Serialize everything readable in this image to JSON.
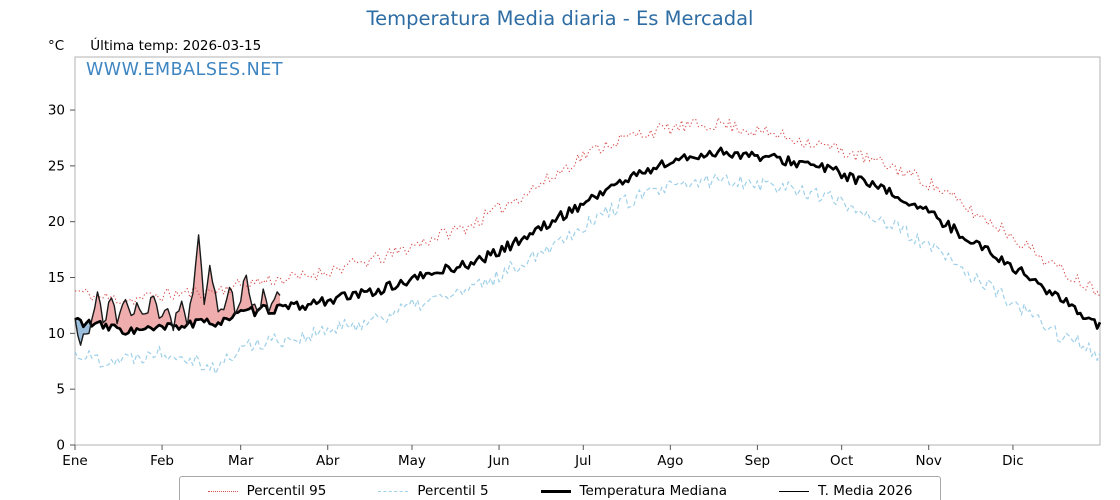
{
  "header": {
    "last_temp": "Última temp: 2026-03-15"
  },
  "watermark": "WWW.EMBALSES.NET",
  "chart_data": {
    "type": "line",
    "title": "Temperatura Media diaria - Es Mercadal",
    "ylabel": "°C",
    "xlabel": "",
    "ylim": [
      0,
      34.75
    ],
    "yticks": [
      0,
      5,
      10,
      15,
      20,
      25,
      30
    ],
    "xlim_days": [
      1,
      366
    ],
    "x_tick_days": [
      1,
      32,
      60,
      91,
      121,
      152,
      182,
      213,
      244,
      274,
      305,
      335
    ],
    "x_tick_labels": [
      "Ene",
      "Feb",
      "Mar",
      "Abr",
      "May",
      "Jun",
      "Jul",
      "Ago",
      "Sep",
      "Oct",
      "Nov",
      "Dic"
    ],
    "grid": false,
    "legend_position": "bottom",
    "colors": {
      "title": "#2e6da4",
      "watermark": "#3e86c2",
      "percentil95": "#d94f4f",
      "percentil5": "#9fd0e8",
      "mediana": "#000000",
      "media2026": "#1a1a1a",
      "fill_above": "rgba(226,106,106,0.55)",
      "fill_below": "rgba(100,155,200,0.65)",
      "axis_box": "#b3b3b3"
    },
    "series": [
      {
        "name": "Percentil 95",
        "style": "dotted",
        "color": "#d94f4f",
        "width": 1.1,
        "noise": 0.6,
        "x": [
          1,
          11,
          21,
          31,
          41,
          51,
          61,
          71,
          81,
          91,
          101,
          111,
          121,
          131,
          141,
          151,
          161,
          171,
          181,
          191,
          201,
          211,
          221,
          231,
          241,
          251,
          261,
          271,
          281,
          291,
          301,
          311,
          321,
          331,
          341,
          351,
          361,
          366
        ],
        "y": [
          13.8,
          13.2,
          13.0,
          13.4,
          13.6,
          13.8,
          14.4,
          14.8,
          15.0,
          15.6,
          16.2,
          16.8,
          17.8,
          18.8,
          19.6,
          21.0,
          22.5,
          24.0,
          25.8,
          27.0,
          27.8,
          28.3,
          28.6,
          28.8,
          28.2,
          27.8,
          27.2,
          26.6,
          25.8,
          25.0,
          24.0,
          22.6,
          20.8,
          19.4,
          17.6,
          15.8,
          14.4,
          13.8
        ]
      },
      {
        "name": "Percentil 5",
        "style": "dashed",
        "color": "#9fd0e8",
        "width": 1.2,
        "noise": 0.7,
        "x": [
          1,
          11,
          21,
          31,
          41,
          51,
          61,
          71,
          81,
          91,
          101,
          111,
          121,
          131,
          141,
          151,
          161,
          171,
          181,
          191,
          201,
          211,
          221,
          231,
          241,
          251,
          261,
          271,
          281,
          291,
          301,
          311,
          321,
          331,
          341,
          351,
          361,
          366
        ],
        "y": [
          8.2,
          7.6,
          7.8,
          8.4,
          8.0,
          6.8,
          8.8,
          9.4,
          9.6,
          10.2,
          10.8,
          11.6,
          12.4,
          13.2,
          13.8,
          15.0,
          16.5,
          18.0,
          19.5,
          21.0,
          22.2,
          22.9,
          23.4,
          23.8,
          23.6,
          23.2,
          22.8,
          22.0,
          21.0,
          19.8,
          18.4,
          16.8,
          15.0,
          13.4,
          11.6,
          10.0,
          8.8,
          8.0
        ]
      },
      {
        "name": "Temperatura Mediana",
        "style": "solid",
        "color": "#000000",
        "width": 2.7,
        "noise": 0.45,
        "x": [
          1,
          11,
          21,
          31,
          41,
          51,
          61,
          71,
          81,
          91,
          101,
          111,
          121,
          131,
          141,
          151,
          161,
          171,
          181,
          191,
          201,
          211,
          221,
          231,
          241,
          251,
          261,
          271,
          281,
          291,
          301,
          311,
          321,
          331,
          341,
          351,
          361,
          366
        ],
        "y": [
          11.2,
          10.6,
          10.2,
          10.4,
          10.8,
          11.0,
          11.8,
          12.2,
          12.4,
          13.0,
          13.4,
          14.0,
          14.8,
          15.6,
          16.2,
          17.2,
          18.6,
          20.0,
          21.5,
          23.0,
          24.2,
          25.2,
          25.8,
          26.3,
          25.9,
          25.6,
          25.2,
          24.6,
          23.6,
          22.6,
          21.4,
          19.8,
          18.2,
          16.6,
          15.0,
          13.2,
          11.6,
          10.6
        ]
      },
      {
        "name": "T. Media 2026",
        "style": "solid",
        "color": "#1a1a1a",
        "width": 1.4,
        "noise": 0.55,
        "fill_vs": "Temperatura Mediana",
        "x": [
          1,
          3,
          6,
          9,
          11,
          14,
          16,
          19,
          21,
          24,
          26,
          29,
          31,
          34,
          36,
          39,
          41,
          43,
          45,
          47,
          49,
          52,
          54,
          56,
          58,
          60,
          62,
          64,
          66,
          68,
          70,
          72,
          74
        ],
        "y": [
          11.0,
          9.4,
          10.0,
          13.6,
          11.2,
          12.8,
          11.4,
          13.0,
          11.6,
          12.6,
          11.2,
          13.4,
          11.6,
          12.4,
          10.8,
          12.8,
          11.2,
          13.8,
          18.4,
          12.6,
          15.8,
          12.2,
          11.8,
          14.6,
          12.0,
          13.2,
          15.4,
          12.8,
          11.4,
          13.6,
          12.2,
          12.8,
          13.8
        ]
      }
    ]
  }
}
